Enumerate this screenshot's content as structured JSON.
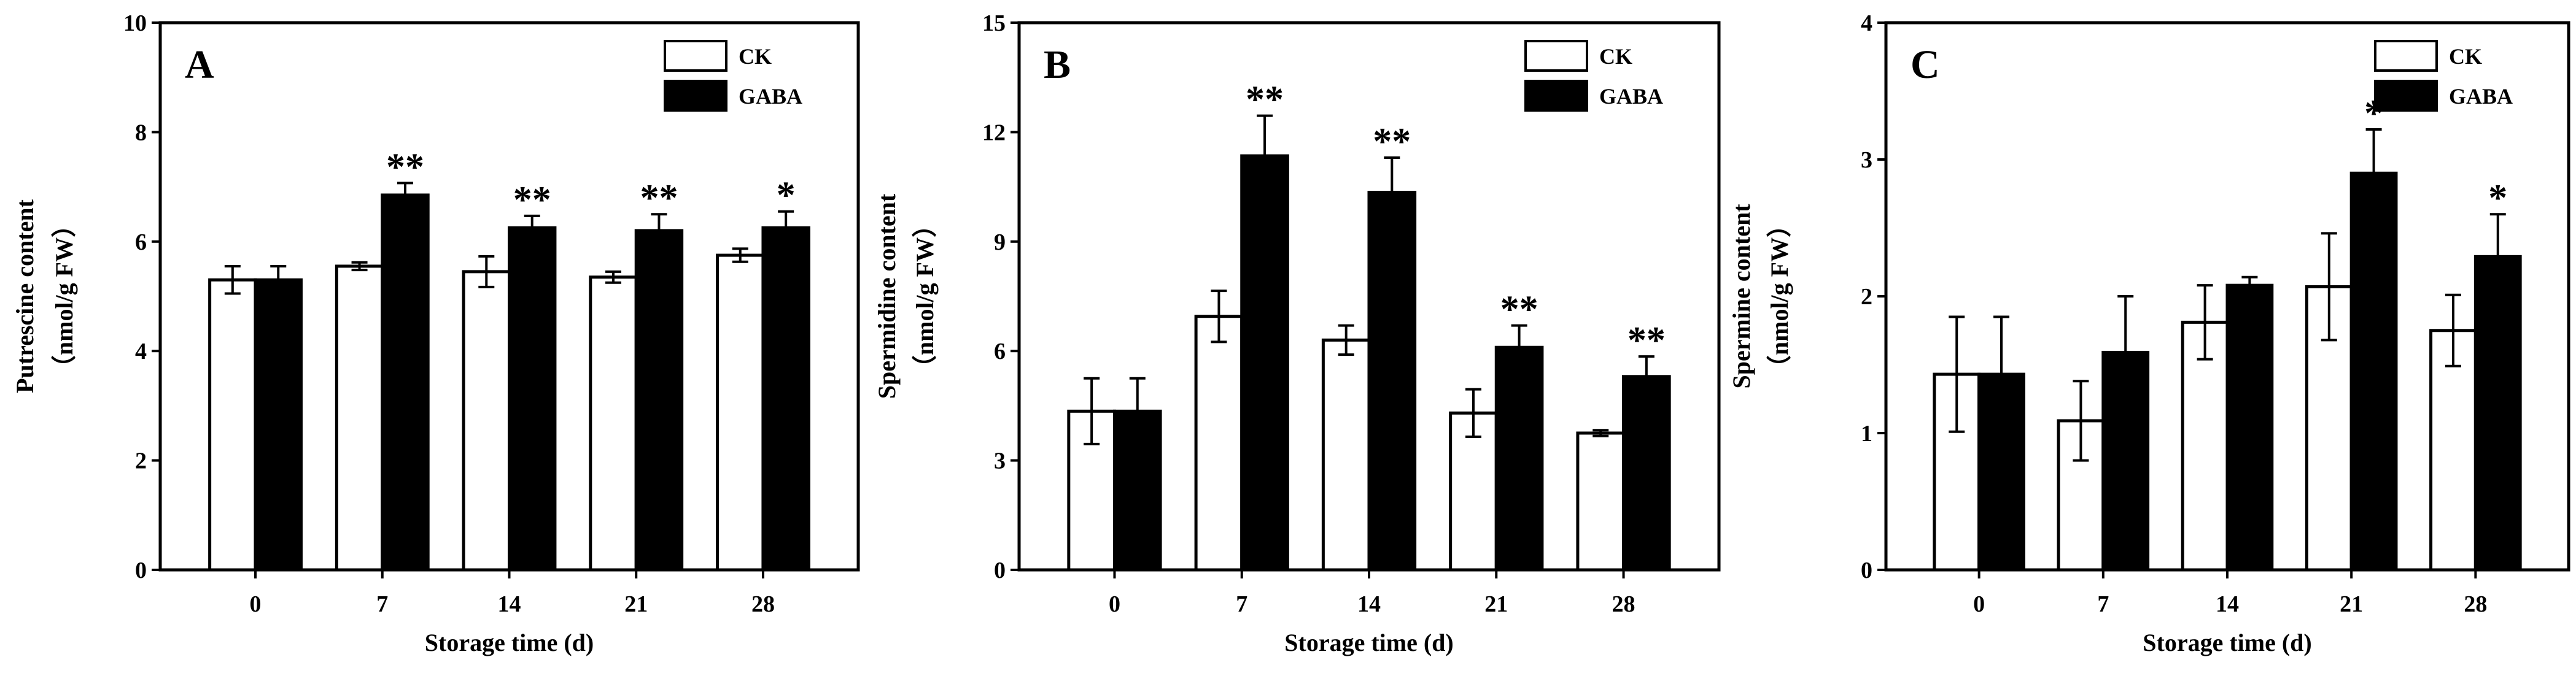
{
  "chart_data": [
    {
      "type": "bar",
      "panel_label": "A",
      "categories": [
        "0",
        "7",
        "14",
        "21",
        "28"
      ],
      "xlabel": "Storage time (d)",
      "ylabel_line1": "Putrescine content",
      "ylabel_line2": "（nmol/g FW）",
      "ylim": [
        0,
        10
      ],
      "yticks": [
        0,
        2,
        4,
        6,
        8,
        10
      ],
      "ytick_labels": [
        "0",
        "2",
        "4",
        "6",
        "8",
        "10"
      ],
      "legend_position": "top-right",
      "series": [
        {
          "name": "CK",
          "color": "#ffffff",
          "values": [
            5.3,
            5.55,
            5.45,
            5.35,
            5.75
          ],
          "errors": [
            0.25,
            0.07,
            0.28,
            0.1,
            0.12
          ]
        },
        {
          "name": "GABA",
          "color": "#000000",
          "values": [
            5.3,
            6.85,
            6.25,
            6.2,
            6.25
          ],
          "errors": [
            0.25,
            0.22,
            0.22,
            0.3,
            0.3
          ]
        }
      ],
      "significance": [
        "",
        "**",
        "**",
        "**",
        "*"
      ]
    },
    {
      "type": "bar",
      "panel_label": "B",
      "categories": [
        "0",
        "7",
        "14",
        "21",
        "28"
      ],
      "xlabel": "Storage time (d)",
      "ylabel_line1": "Spermidine content",
      "ylabel_line2": "（nmol/g FW）",
      "ylim": [
        0,
        15
      ],
      "yticks": [
        0,
        3,
        6,
        9,
        12,
        15
      ],
      "ytick_labels": [
        "0",
        "3",
        "6",
        "9",
        "12",
        "15"
      ],
      "legend_position": "top-right",
      "series": [
        {
          "name": "CK",
          "color": "#ffffff",
          "values": [
            4.35,
            6.95,
            6.3,
            4.3,
            3.75
          ],
          "errors": [
            0.9,
            0.7,
            0.4,
            0.65,
            0.08
          ]
        },
        {
          "name": "GABA",
          "color": "#000000",
          "values": [
            4.35,
            11.35,
            10.35,
            6.1,
            5.3
          ],
          "errors": [
            0.9,
            1.1,
            0.95,
            0.6,
            0.55
          ]
        }
      ],
      "significance": [
        "",
        "**",
        "**",
        "**",
        "**"
      ]
    },
    {
      "type": "bar",
      "panel_label": "C",
      "categories": [
        "0",
        "7",
        "14",
        "21",
        "28"
      ],
      "xlabel": "Storage time (d)",
      "ylabel_line1": "Spermine content",
      "ylabel_line2": "（nmol/g FW）",
      "ylim": [
        0,
        4
      ],
      "yticks": [
        0,
        1,
        2,
        3,
        4
      ],
      "ytick_labels": [
        "0",
        "1",
        "2",
        "3",
        "4"
      ],
      "legend_position": "top-right",
      "series": [
        {
          "name": "CK",
          "color": "#ffffff",
          "values": [
            1.43,
            1.09,
            1.81,
            2.07,
            1.75
          ],
          "errors": [
            0.42,
            0.29,
            0.27,
            0.39,
            0.26
          ]
        },
        {
          "name": "GABA",
          "color": "#000000",
          "values": [
            1.43,
            1.59,
            2.08,
            2.9,
            2.29
          ],
          "errors": [
            0.42,
            0.41,
            0.06,
            0.32,
            0.31
          ]
        }
      ],
      "significance": [
        "",
        "",
        "",
        "*",
        "*"
      ]
    }
  ]
}
